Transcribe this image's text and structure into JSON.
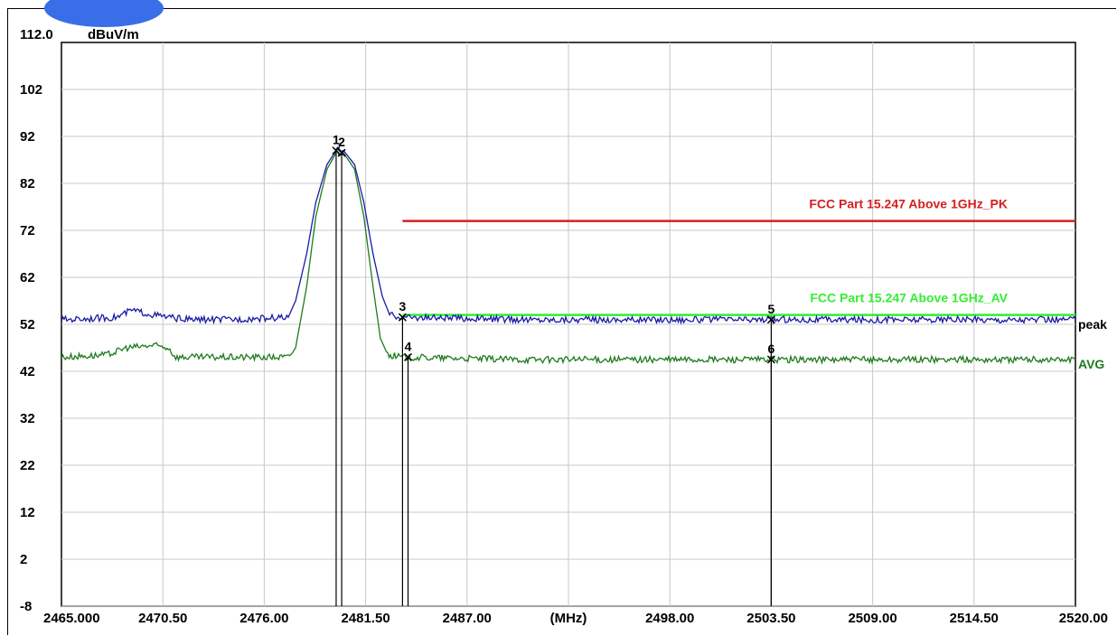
{
  "chart_data": {
    "type": "line",
    "ylabel": "dBuV/m",
    "xlabel": "(MHz)",
    "y_top_label": "112.0",
    "ylim": [
      -8,
      112
    ],
    "xlim": [
      2465.0,
      2520.0
    ],
    "y_ticks": [
      "102",
      "92",
      "82",
      "72",
      "62",
      "52",
      "42",
      "32",
      "22",
      "12",
      "2",
      "-8"
    ],
    "y_tick_values": [
      102,
      92,
      82,
      72,
      62,
      52,
      42,
      32,
      22,
      12,
      2,
      -8
    ],
    "x_ticks": [
      "2465.000",
      "2470.50",
      "2476.00",
      "2481.50",
      "2487.00",
      "(MHz)",
      "2498.00",
      "2503.50",
      "2509.00",
      "2514.50",
      "2520.00"
    ],
    "x_tick_values": [
      2465.0,
      2470.5,
      2476.0,
      2481.5,
      2487.0,
      2492.5,
      2498.0,
      2503.5,
      2509.0,
      2514.5,
      2520.0
    ],
    "grid": true,
    "limit_lines": [
      {
        "name": "FCC Part 15.247 Above 1GHz_PK",
        "value": 74,
        "x_start": 2483.5,
        "x_end": 2520.0,
        "color": "#d42020"
      },
      {
        "name": "FCC Part 15.247 Above 1GHz_AV",
        "value": 54,
        "x_start": 2483.5,
        "x_end": 2520.0,
        "color": "#33ee33"
      }
    ],
    "series": [
      {
        "name": "peak",
        "color": "#1a1aa6",
        "x": [
          2465.0,
          2468.0,
          2468.8,
          2470.0,
          2470.8,
          2472.0,
          2474.0,
          2477.3,
          2477.7,
          2478.3,
          2478.8,
          2479.4,
          2479.9,
          2480.3,
          2480.9,
          2481.4,
          2481.9,
          2482.4,
          2482.8,
          2483.5,
          2490.0,
          2500.0,
          2510.0,
          2520.0
        ],
        "y": [
          53,
          53.5,
          55,
          54,
          53.5,
          53,
          53,
          53.5,
          57,
          67,
          78,
          86,
          89,
          89,
          86,
          78,
          67,
          58,
          54,
          53.5,
          53,
          53,
          53,
          53
        ]
      },
      {
        "name": "AVG",
        "color": "#1f7a1f",
        "x": [
          2465.0,
          2467.5,
          2468.5,
          2470.0,
          2470.8,
          2471.2,
          2474.0,
          2477.3,
          2477.7,
          2478.3,
          2478.8,
          2479.4,
          2479.9,
          2480.3,
          2480.9,
          2481.4,
          2481.9,
          2482.3,
          2482.7,
          2483.5,
          2490.0,
          2500.0,
          2510.0,
          2520.0
        ],
        "y": [
          45,
          45.5,
          47,
          47.5,
          47,
          45,
          45,
          45,
          47,
          60,
          75,
          85,
          88.5,
          88.5,
          85,
          75,
          60,
          49,
          45.5,
          45,
          44.5,
          44.5,
          44.5,
          44.5
        ]
      }
    ],
    "markers": [
      {
        "label": "1",
        "x": 2479.9,
        "y": 89
      },
      {
        "label": "2",
        "x": 2480.2,
        "y": 88.5
      },
      {
        "label": "3",
        "x": 2483.5,
        "y": 53.5
      },
      {
        "label": "4",
        "x": 2483.8,
        "y": 45
      },
      {
        "label": "5",
        "x": 2503.5,
        "y": 53
      },
      {
        "label": "6",
        "x": 2503.5,
        "y": 44.5
      }
    ]
  }
}
